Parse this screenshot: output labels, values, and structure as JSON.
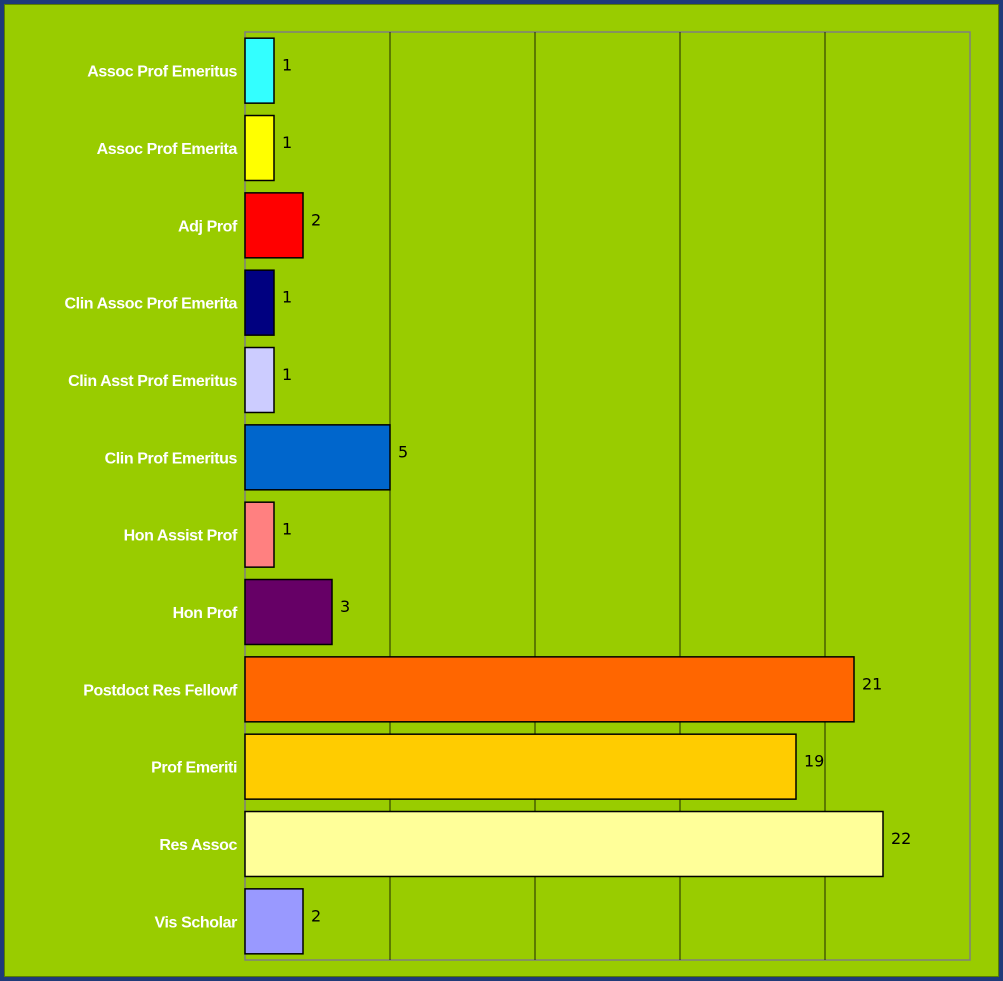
{
  "chart_data": {
    "type": "bar",
    "orientation": "horizontal",
    "title": "",
    "xlabel": "",
    "ylabel": "",
    "xlim": [
      0,
      25
    ],
    "grid": true,
    "categories": [
      "Assoc Prof Emeritus",
      "Assoc Prof Emerita",
      "Adj Prof",
      "Clin Assoc Prof Emerita",
      "Clin Asst Prof Emeritus",
      "Clin Prof Emeritus",
      "Hon Assist Prof",
      "Hon Prof",
      "Postdoct Res Fellowf",
      "Prof Emeriti",
      "Res Assoc",
      "Vis Scholar"
    ],
    "values": [
      1,
      1,
      2,
      1,
      1,
      5,
      1,
      3,
      21,
      19,
      22,
      2
    ],
    "data_labels": [
      "1",
      "1",
      "2",
      "1",
      "1",
      "5",
      "1",
      "3",
      "21",
      "19",
      "22",
      "2"
    ],
    "colors": [
      "#33ffff",
      "#ffff00",
      "#ff0000",
      "#000080",
      "#ccccff",
      "#0066cc",
      "#ff8080",
      "#660066",
      "#ff6600",
      "#ffcc00",
      "#ffff99",
      "#9999ff"
    ],
    "background": "#99cc00",
    "frame_color": "#1f3b7a"
  }
}
